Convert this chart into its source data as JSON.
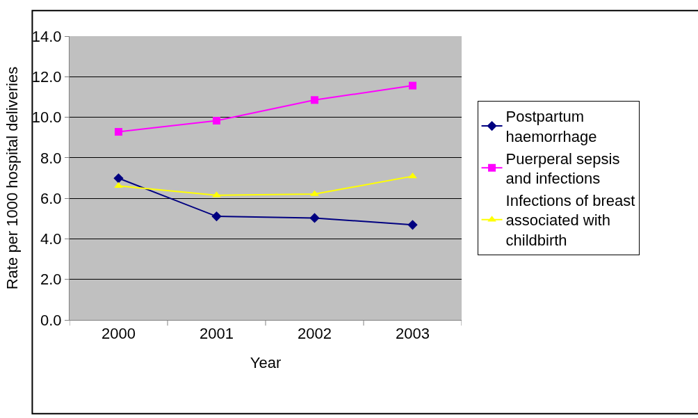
{
  "chart_data": {
    "type": "line",
    "xlabel": "Year",
    "ylabel": "Rate per 1000 hospital deliveries",
    "categories": [
      "2000",
      "2001",
      "2002",
      "2003"
    ],
    "series": [
      {
        "name": "Postpartum\nhaemorrhage",
        "color": "#000080",
        "marker": "diamond",
        "values": [
          6.99,
          5.11,
          5.03,
          4.69
        ]
      },
      {
        "name": "Puerperal sepsis\nand infections",
        "color": "#ff00ff",
        "marker": "square",
        "values": [
          9.28,
          9.83,
          10.85,
          11.56
        ]
      },
      {
        "name": "Infections of breast\nassociated with\nchildbirth",
        "color": "#ffff00",
        "marker": "triangle",
        "values": [
          6.61,
          6.15,
          6.21,
          7.09
        ]
      }
    ],
    "ylim": [
      0,
      14
    ],
    "yticks": [
      {
        "value": 0,
        "label": "0.0"
      },
      {
        "value": 2,
        "label": "2.0"
      },
      {
        "value": 4,
        "label": "4.0"
      },
      {
        "value": 6,
        "label": "6.0"
      },
      {
        "value": 8,
        "label": "8.0"
      },
      {
        "value": 10,
        "label": "10.0"
      },
      {
        "value": 12,
        "label": "12.0"
      },
      {
        "value": 14,
        "label": "14.0"
      }
    ],
    "grid": "y",
    "legend": "right",
    "line_style": "solid"
  }
}
